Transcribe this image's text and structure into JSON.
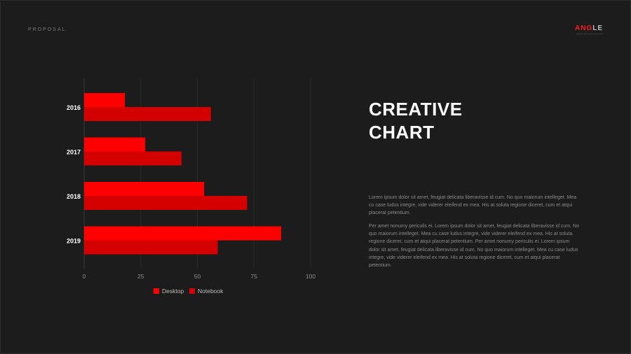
{
  "header": {
    "label": "PROPOSAL",
    "logo_a": "ANG",
    "logo_b": "LE"
  },
  "content": {
    "title_line1": "CREATIVE",
    "title_line2": "CHART",
    "paragraph1": "Lorem ipsum dolor sit amet, feugiat delicata liberavisse id cum. No quo maiorum intelleget. Mea cu case ludus integre, vide viderer eleifend ex mea. His at soluta regione diceret, cum et atqui placerat petentium.",
    "paragraph2": "Per amet nonumy periculis ei. Lorem ipsum dolor sit amet, feugiat delicata liberavisse id cum. No quo maiorum intelleget. Mea cu case ludus integre, vide viderer eleifend ex mea. His at soluta regione diceret, cum et atqui placerat petentium. Per amet nonumy periculis ei. Lorem ipsum dolor sit amet, feugiat delicata liberavisse id cum. No quo maiorum intelleget. Mea cu case ludus integre, vide viderer eleifend ex mea. His at soluta regione diceret, cum et atqui placerat petentium."
  },
  "colors": {
    "desktop": "#ff0000",
    "notebook": "#d40000",
    "accent": "#ff1a1a"
  },
  "chart_data": {
    "type": "bar",
    "orientation": "horizontal",
    "categories": [
      "2016",
      "2017",
      "2018",
      "2019"
    ],
    "series": [
      {
        "name": "Desktop",
        "values": [
          18,
          27,
          53,
          87
        ]
      },
      {
        "name": "Notebook",
        "values": [
          56,
          43,
          72,
          59
        ]
      }
    ],
    "xlim": [
      0,
      100
    ],
    "xticks": [
      0,
      25,
      50,
      75,
      100
    ],
    "grid": true,
    "legend": "bottom"
  }
}
